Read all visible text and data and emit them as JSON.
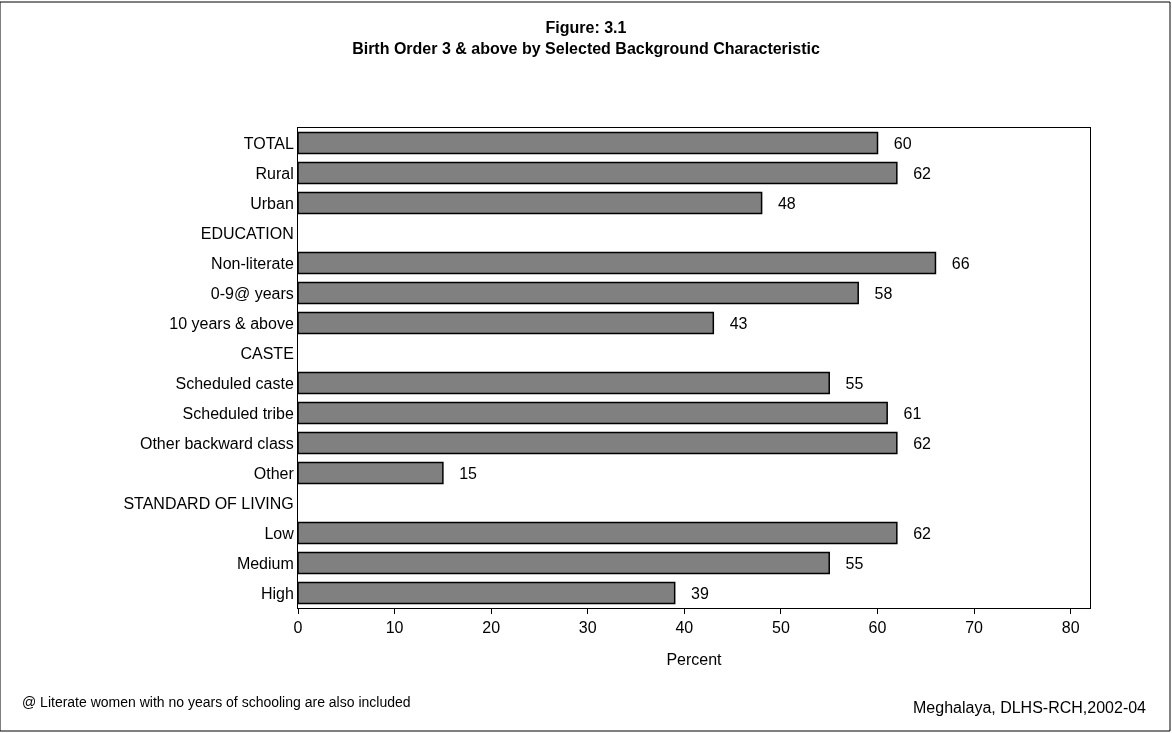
{
  "chart_data": {
    "type": "bar",
    "orientation": "horizontal",
    "title": "Figure: 3.1",
    "subtitle": "Birth Order 3 & above by Selected Background Characteristic",
    "xlabel": "Percent",
    "categories": [
      "TOTAL",
      "Rural",
      "Urban",
      "EDUCATION",
      "Non-literate",
      "0-9@ years",
      "10 years & above",
      "CASTE",
      "Scheduled caste",
      "Scheduled tribe",
      "Other backward class",
      "Other",
      "STANDARD OF LIVING",
      "Low",
      "Medium",
      "High"
    ],
    "values": [
      60,
      62,
      48,
      null,
      66,
      58,
      43,
      null,
      55,
      61,
      62,
      15,
      null,
      62,
      55,
      39
    ],
    "value_labels": [
      "60",
      "62",
      "48",
      null,
      "66",
      "58",
      "43",
      null,
      "55",
      "61",
      "62",
      "15",
      null,
      "62",
      "55",
      "39"
    ],
    "color": "#808080",
    "xlim": [
      0,
      82
    ],
    "xticks": [
      0,
      10,
      20,
      30,
      40,
      50,
      60,
      70,
      80
    ],
    "annotations": [
      "@ Literate women with no years of schooling are also included",
      "Meghalaya, DLHS-RCH,2002-04"
    ]
  }
}
